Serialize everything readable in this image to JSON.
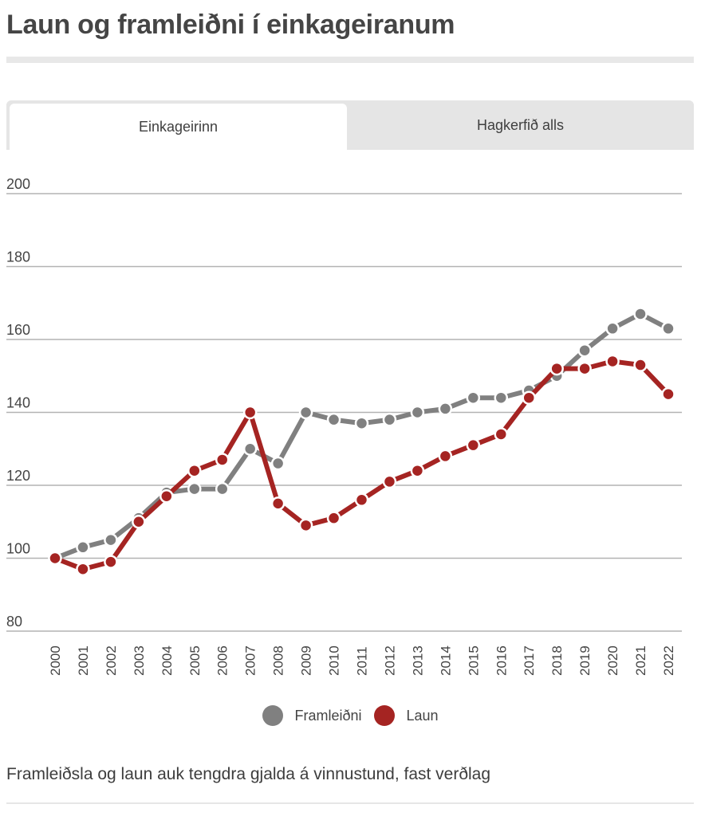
{
  "page": {
    "title": "Laun og framleiðni í einkageiranum",
    "caption": "Framleiðsla og laun auk tengdra gjalda á vinnustund, fast verðlag"
  },
  "tabs": [
    {
      "label": "Einkageirinn",
      "active": true
    },
    {
      "label": "Hagkerfið alls",
      "active": false
    }
  ],
  "colors": {
    "framleidni": "#808080",
    "laun": "#a52422",
    "grid": "#b3b3b3",
    "tick_text": "#444444"
  },
  "chart_data": {
    "type": "line",
    "title": "Laun og framleiðni í einkageiranum",
    "xlabel": "",
    "ylabel": "",
    "x": [
      "2000",
      "2001",
      "2002",
      "2003",
      "2004",
      "2005",
      "2006",
      "2007",
      "2008",
      "2009",
      "2010",
      "2011",
      "2012",
      "2013",
      "2014",
      "2015",
      "2016",
      "2017",
      "2018",
      "2019",
      "2020",
      "2021",
      "2022"
    ],
    "yticks": [
      80,
      100,
      120,
      140,
      160,
      180,
      200
    ],
    "ylim": [
      80,
      200
    ],
    "grid": true,
    "legend_position": "bottom-center",
    "series": [
      {
        "name": "Framleiðni",
        "color": "#808080",
        "values": [
          100,
          103,
          105,
          111,
          118,
          119,
          119,
          130,
          126,
          140,
          138,
          137,
          138,
          140,
          141,
          144,
          144,
          146,
          150,
          157,
          163,
          167,
          163
        ]
      },
      {
        "name": "Laun",
        "color": "#a52422",
        "values": [
          100,
          97,
          99,
          110,
          117,
          124,
          127,
          140,
          115,
          109,
          111,
          116,
          121,
          124,
          128,
          131,
          134,
          144,
          152,
          152,
          154,
          153,
          145
        ]
      }
    ]
  }
}
